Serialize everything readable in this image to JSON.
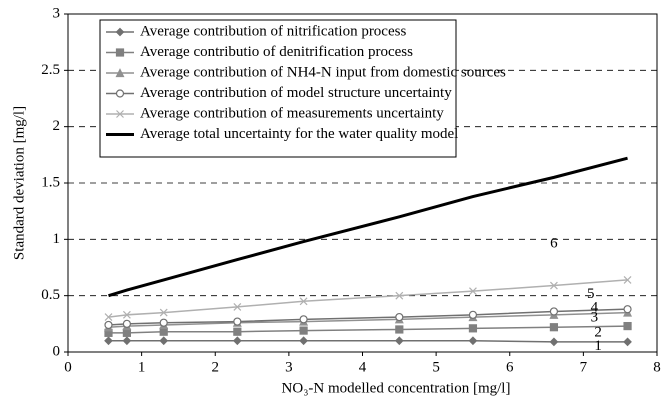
{
  "chart_data": {
    "type": "line",
    "xlabel": "NO₃-N modelled concentration [mg/l]",
    "ylabel": "Standard deviation [mg/l]",
    "x": [
      0.55,
      0.8,
      1.3,
      2.3,
      3.2,
      4.5,
      5.5,
      6.6,
      7.6
    ],
    "series": [
      {
        "name": "Average contribution of nitrification process",
        "color": "#707070",
        "marker": "diamond",
        "values": [
          0.1,
          0.1,
          0.1,
          0.1,
          0.1,
          0.1,
          0.1,
          0.09,
          0.09
        ]
      },
      {
        "name": "Average contributio of denitrification process",
        "color": "#808080",
        "marker": "square",
        "values": [
          0.17,
          0.17,
          0.18,
          0.18,
          0.19,
          0.2,
          0.21,
          0.22,
          0.23
        ]
      },
      {
        "name": "Average contribution of NH4-N input from domestic sources",
        "color": "#909090",
        "marker": "triangle",
        "values": [
          0.22,
          0.23,
          0.24,
          0.26,
          0.27,
          0.29,
          0.31,
          0.33,
          0.35
        ]
      },
      {
        "name": "Average contribution of model structure uncertainty",
        "color": "#707070",
        "marker": "circle",
        "values": [
          0.24,
          0.25,
          0.26,
          0.27,
          0.29,
          0.31,
          0.33,
          0.36,
          0.38
        ]
      },
      {
        "name": "Average contribution of measurements uncertainty",
        "color": "#b0b0b0",
        "marker": "x",
        "values": [
          0.31,
          0.33,
          0.35,
          0.4,
          0.45,
          0.5,
          0.54,
          0.59,
          0.64
        ]
      },
      {
        "name": "Average total uncertainty for the water quality model",
        "color": "#000000",
        "marker": "none",
        "values": [
          0.5,
          0.55,
          0.64,
          0.82,
          0.98,
          1.2,
          1.38,
          1.55,
          1.72
        ]
      }
    ],
    "annotations": [
      {
        "text": "1",
        "x": 7.2,
        "y": 0.05
      },
      {
        "text": "2",
        "x": 7.2,
        "y": 0.17
      },
      {
        "text": "3",
        "x": 7.15,
        "y": 0.3
      },
      {
        "text": "4",
        "x": 7.15,
        "y": 0.39
      },
      {
        "text": "5",
        "x": 7.1,
        "y": 0.51
      },
      {
        "text": "6",
        "x": 6.6,
        "y": 0.96
      }
    ],
    "xlim": [
      0,
      8
    ],
    "xticks": [
      0,
      1,
      2,
      3,
      4,
      5,
      6,
      7,
      8
    ],
    "ylim": [
      0,
      3
    ],
    "yticks": [
      0,
      0.5,
      1,
      1.5,
      2,
      2.5,
      3
    ],
    "grid": true,
    "legend": "upper-left"
  }
}
